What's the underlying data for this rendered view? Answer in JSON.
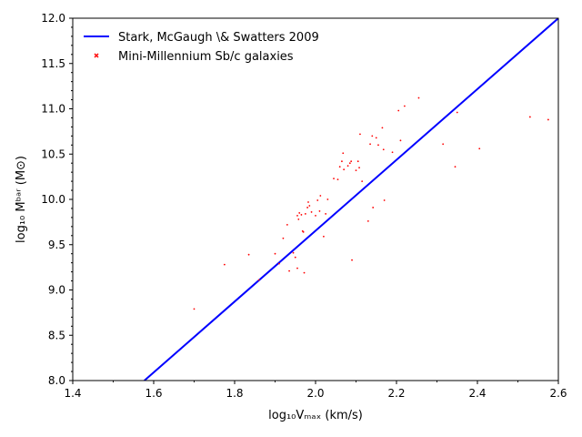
{
  "chart_data": {
    "type": "scatter",
    "xlabel": "log₁₀Vₘₐₓ (km/s)",
    "ylabel": "log₁₀ Mᵇᵃʳ (M⊙)",
    "xlim": [
      1.4,
      2.6
    ],
    "ylim": [
      8.0,
      12.0
    ],
    "xticks": [
      "1.4",
      "1.6",
      "1.8",
      "2.0",
      "2.2",
      "2.4",
      "2.6"
    ],
    "yticks": [
      "8.0",
      "8.5",
      "9.0",
      "9.5",
      "10.0",
      "10.5",
      "11.0",
      "11.5",
      "12.0"
    ],
    "legend_position": "top-left",
    "grid": false,
    "series": [
      {
        "name": "Stark, McGaugh \\& Swatters 2009",
        "kind": "line",
        "color": "#0000ff",
        "points": [
          [
            1.577,
            8.0
          ],
          [
            2.6,
            12.0
          ]
        ]
      },
      {
        "name": "Mini-Millennium Sb/c galaxies",
        "kind": "scatter",
        "color": "#ff0000",
        "points": [
          [
            1.7,
            8.79
          ],
          [
            1.775,
            9.28
          ],
          [
            1.835,
            9.39
          ],
          [
            1.86,
            9.11
          ],
          [
            1.9,
            9.4
          ],
          [
            1.91,
            9.29
          ],
          [
            1.92,
            9.57
          ],
          [
            1.93,
            9.72
          ],
          [
            1.935,
            9.21
          ],
          [
            1.945,
            9.41
          ],
          [
            1.95,
            9.36
          ],
          [
            1.955,
            9.24
          ],
          [
            1.955,
            9.82
          ],
          [
            1.958,
            9.78
          ],
          [
            1.96,
            9.85
          ],
          [
            1.965,
            9.83
          ],
          [
            1.968,
            9.65
          ],
          [
            1.97,
            9.64
          ],
          [
            1.972,
            9.19
          ],
          [
            1.975,
            9.84
          ],
          [
            1.98,
            9.91
          ],
          [
            1.982,
            9.97
          ],
          [
            1.985,
            9.93
          ],
          [
            1.99,
            9.86
          ],
          [
            2.0,
            9.82
          ],
          [
            2.005,
            9.99
          ],
          [
            2.01,
            9.87
          ],
          [
            2.012,
            10.04
          ],
          [
            2.02,
            9.59
          ],
          [
            2.025,
            9.84
          ],
          [
            2.03,
            10.0
          ],
          [
            2.045,
            10.23
          ],
          [
            2.055,
            10.22
          ],
          [
            2.06,
            10.36
          ],
          [
            2.065,
            10.42
          ],
          [
            2.068,
            10.51
          ],
          [
            2.07,
            10.33
          ],
          [
            2.08,
            10.37
          ],
          [
            2.085,
            10.4
          ],
          [
            2.088,
            10.42
          ],
          [
            2.09,
            9.33
          ],
          [
            2.1,
            10.32
          ],
          [
            2.105,
            10.42
          ],
          [
            2.108,
            10.35
          ],
          [
            2.11,
            10.72
          ],
          [
            2.115,
            10.2
          ],
          [
            2.13,
            9.76
          ],
          [
            2.135,
            10.61
          ],
          [
            2.14,
            10.7
          ],
          [
            2.142,
            9.91
          ],
          [
            2.15,
            10.68
          ],
          [
            2.155,
            10.6
          ],
          [
            2.165,
            10.79
          ],
          [
            2.168,
            10.55
          ],
          [
            2.17,
            9.99
          ],
          [
            2.19,
            10.52
          ],
          [
            2.205,
            10.98
          ],
          [
            2.21,
            10.65
          ],
          [
            2.22,
            11.03
          ],
          [
            2.255,
            11.12
          ],
          [
            2.315,
            10.61
          ],
          [
            2.345,
            10.36
          ],
          [
            2.35,
            10.96
          ],
          [
            2.405,
            10.56
          ],
          [
            2.53,
            10.91
          ],
          [
            2.575,
            10.88
          ]
        ]
      }
    ]
  }
}
